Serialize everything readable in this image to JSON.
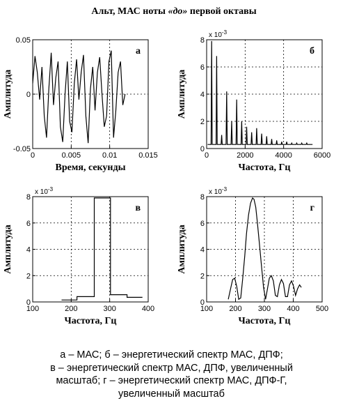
{
  "title": "Альт, МАС ноты «до» первой октавы",
  "title_parts": {
    "pre": "Альт, МАС ноты ",
    "em": "«до»",
    "post": " первой октавы"
  },
  "caption": [
    "а – МАС; б – энергетический спектр МАС, ДПФ;",
    "в – энергетический спектр МАС, ДПФ, увеличенный",
    "масштаб; г – энергетический спектр МАС, ДПФ-Г,",
    "увеличенный масштаб"
  ],
  "chart_data": [
    {
      "panel": "а",
      "type": "line",
      "xlabel": "Время, секунды",
      "ylabel": "Амплитуда",
      "xlim": [
        0,
        0.015
      ],
      "ylim": [
        -0.05,
        0.05
      ],
      "xticks": [
        "0",
        "0.005",
        "0.01",
        "0.015"
      ],
      "yticks": [
        "0.05",
        "0",
        "-0.05"
      ],
      "grid": "dotted",
      "x": [
        0,
        0.0003,
        0.0006,
        0.0009,
        0.0012,
        0.0015,
        0.0018,
        0.0021,
        0.0024,
        0.0027,
        0.003,
        0.0033,
        0.0036,
        0.0039,
        0.0042,
        0.0045,
        0.0048,
        0.0051,
        0.0054,
        0.0057,
        0.006,
        0.0063,
        0.0066,
        0.0069,
        0.0072,
        0.0075,
        0.0078,
        0.0081,
        0.0084,
        0.0087,
        0.009,
        0.0093,
        0.0096,
        0.0099,
        0.0102,
        0.0105,
        0.0108,
        0.0111,
        0.0114,
        0.0117,
        0.012
      ],
      "y": [
        0.01,
        0.035,
        0.02,
        -0.005,
        0.025,
        -0.02,
        -0.04,
        0.005,
        0.038,
        -0.01,
        0.015,
        0.03,
        -0.03,
        -0.044,
        0.0,
        0.03,
        -0.025,
        -0.035,
        0.01,
        0.032,
        -0.005,
        0.02,
        0.036,
        -0.02,
        -0.045,
        0.005,
        0.025,
        -0.015,
        0.02,
        0.034,
        0.0,
        -0.03,
        -0.02,
        0.03,
        0.04,
        -0.04,
        -0.015,
        0.02,
        0.03,
        -0.01,
        0.0
      ]
    },
    {
      "panel": "б",
      "type": "line",
      "xlabel": "Частота, Гц",
      "ylabel": "Амплитуда",
      "multiplier": "x 10-3",
      "xlim": [
        0,
        6000
      ],
      "ylim": [
        0,
        8
      ],
      "xticks": [
        "0",
        "2000",
        "4000",
        "6000"
      ],
      "yticks": [
        "8",
        "6",
        "4",
        "2",
        "0"
      ],
      "grid": "dotted",
      "baseline": 0.3,
      "peaks": [
        {
          "x": 260,
          "y": 7.9
        },
        {
          "x": 520,
          "y": 6.8
        },
        {
          "x": 780,
          "y": 1.0
        },
        {
          "x": 1040,
          "y": 4.2
        },
        {
          "x": 1300,
          "y": 2.0
        },
        {
          "x": 1560,
          "y": 3.6
        },
        {
          "x": 1820,
          "y": 2.0
        },
        {
          "x": 2080,
          "y": 1.6
        },
        {
          "x": 2340,
          "y": 1.2
        },
        {
          "x": 2600,
          "y": 1.5
        },
        {
          "x": 2860,
          "y": 1.1
        },
        {
          "x": 3120,
          "y": 0.9
        },
        {
          "x": 3380,
          "y": 0.7
        },
        {
          "x": 3640,
          "y": 0.6
        },
        {
          "x": 3900,
          "y": 0.5
        },
        {
          "x": 4160,
          "y": 0.5
        },
        {
          "x": 4420,
          "y": 0.4
        },
        {
          "x": 4680,
          "y": 0.4
        },
        {
          "x": 4940,
          "y": 0.4
        },
        {
          "x": 5200,
          "y": 0.4
        }
      ]
    },
    {
      "panel": "в",
      "type": "line",
      "xlabel": "Частота, Гц",
      "ylabel": "Амплитуда",
      "multiplier": "x 10-3",
      "xlim": [
        100,
        400
      ],
      "ylim": [
        0,
        8
      ],
      "xticks": [
        "100",
        "200",
        "300",
        "400"
      ],
      "yticks": [
        "8",
        "6",
        "4",
        "2",
        "0"
      ],
      "grid": "dotted",
      "x": [
        175,
        215,
        215,
        260,
        260,
        302,
        302,
        345,
        345,
        385
      ],
      "y": [
        0.15,
        0.15,
        0.4,
        0.4,
        7.9,
        7.9,
        0.55,
        0.55,
        0.35,
        0.35
      ]
    },
    {
      "panel": "г",
      "type": "line",
      "xlabel": "Частота, Гц",
      "ylabel": "Амплитуда",
      "multiplier": "x 10-3",
      "xlim": [
        100,
        500
      ],
      "ylim": [
        0,
        8
      ],
      "xticks": [
        "100",
        "200",
        "300",
        "400",
        "500"
      ],
      "yticks": [
        "8",
        "6",
        "4",
        "2",
        "0"
      ],
      "grid": "dotted",
      "x": [
        175,
        183,
        190,
        197,
        204,
        211,
        218,
        225,
        232,
        238,
        245,
        252,
        259,
        264,
        270,
        276,
        283,
        290,
        297,
        304,
        310,
        317,
        324,
        331,
        338,
        345,
        352,
        359,
        366,
        373,
        380,
        387,
        394,
        401,
        408,
        415,
        422,
        428
      ],
      "y": [
        0.2,
        1.0,
        1.7,
        1.8,
        1.2,
        0.2,
        0.3,
        1.8,
        3.5,
        5.2,
        6.6,
        7.5,
        7.9,
        7.8,
        7.2,
        6.0,
        4.4,
        2.7,
        1.1,
        0.2,
        0.9,
        1.8,
        2.0,
        1.6,
        0.5,
        0.4,
        1.3,
        1.7,
        1.4,
        0.4,
        0.4,
        1.3,
        1.6,
        1.2,
        0.5,
        1.0,
        1.3,
        1.1
      ]
    }
  ]
}
